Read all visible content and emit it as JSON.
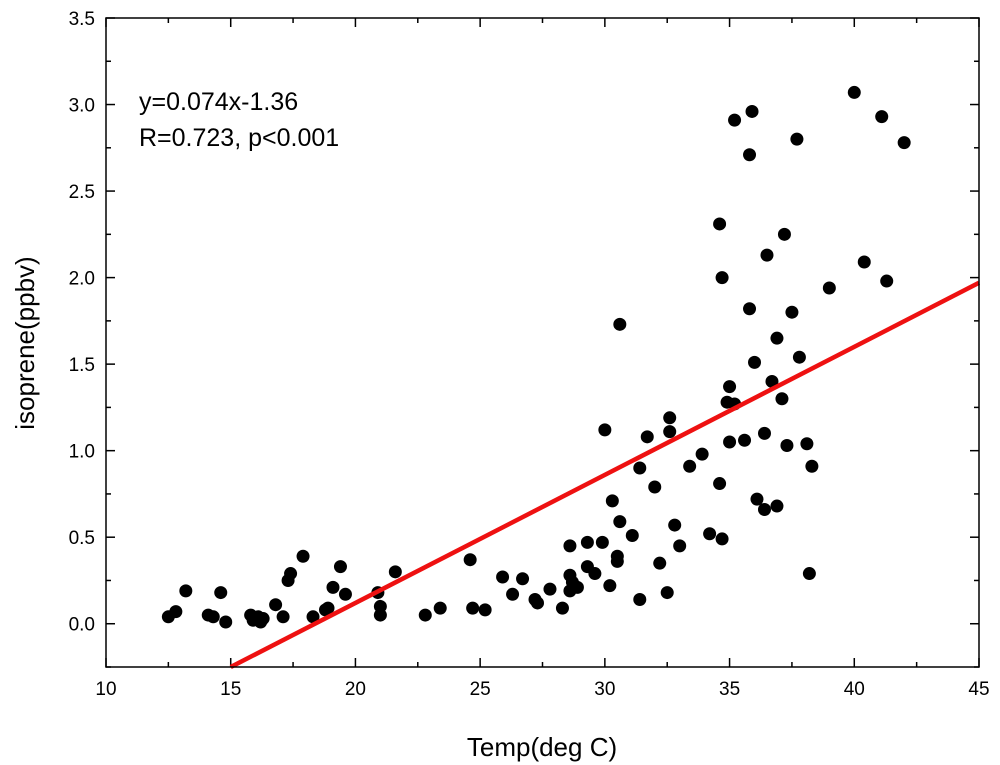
{
  "chart_data": {
    "type": "scatter",
    "title": "",
    "xlabel": "Temp(deg C)",
    "ylabel": "isoprene(ppbv)",
    "xlim": [
      10,
      45
    ],
    "ylim": [
      -0.25,
      3.5
    ],
    "xticks": [
      "10",
      "15",
      "20",
      "25",
      "30",
      "35",
      "40",
      "45"
    ],
    "yticks": [
      "0.0",
      "0.5",
      "1.0",
      "1.5",
      "2.0",
      "2.5",
      "3.0",
      "3.5"
    ],
    "grid": false,
    "legend": "none",
    "annotations": [
      "y=0.074x-1.36",
      "R=0.723, p<0.001"
    ],
    "colors": {
      "points": "#000000",
      "fit_line": "#ee1111"
    },
    "fit_line": {
      "slope": 0.074,
      "intercept": -1.36
    },
    "series": [
      {
        "name": "isoprene",
        "points": [
          [
            12.5,
            0.04
          ],
          [
            12.8,
            0.07
          ],
          [
            13.2,
            0.19
          ],
          [
            14.1,
            0.05
          ],
          [
            14.3,
            0.04
          ],
          [
            14.6,
            0.18
          ],
          [
            14.8,
            0.01
          ],
          [
            15.8,
            0.05
          ],
          [
            15.9,
            0.02
          ],
          [
            16.1,
            0.04
          ],
          [
            16.2,
            0.01
          ],
          [
            16.3,
            0.03
          ],
          [
            16.8,
            0.11
          ],
          [
            17.1,
            0.04
          ],
          [
            17.3,
            0.25
          ],
          [
            17.4,
            0.29
          ],
          [
            17.9,
            0.39
          ],
          [
            18.3,
            0.04
          ],
          [
            18.8,
            0.08
          ],
          [
            18.9,
            0.09
          ],
          [
            19.1,
            0.21
          ],
          [
            19.4,
            0.33
          ],
          [
            19.6,
            0.17
          ],
          [
            20.9,
            0.18
          ],
          [
            21.0,
            0.1
          ],
          [
            21.0,
            0.05
          ],
          [
            21.6,
            0.3
          ],
          [
            22.8,
            0.05
          ],
          [
            23.4,
            0.09
          ],
          [
            24.6,
            0.37
          ],
          [
            24.7,
            0.09
          ],
          [
            25.2,
            0.08
          ],
          [
            25.9,
            0.27
          ],
          [
            26.3,
            0.17
          ],
          [
            26.7,
            0.26
          ],
          [
            27.2,
            0.14
          ],
          [
            27.3,
            0.12
          ],
          [
            27.8,
            0.2
          ],
          [
            28.3,
            0.09
          ],
          [
            28.6,
            0.28
          ],
          [
            28.6,
            0.45
          ],
          [
            28.6,
            0.19
          ],
          [
            28.7,
            0.24
          ],
          [
            28.9,
            0.21
          ],
          [
            29.3,
            0.47
          ],
          [
            29.3,
            0.33
          ],
          [
            29.6,
            0.29
          ],
          [
            29.9,
            0.47
          ],
          [
            30.0,
            1.12
          ],
          [
            30.2,
            0.22
          ],
          [
            30.3,
            0.71
          ],
          [
            30.5,
            0.39
          ],
          [
            30.5,
            0.36
          ],
          [
            30.6,
            0.59
          ],
          [
            30.6,
            1.73
          ],
          [
            31.1,
            0.51
          ],
          [
            31.4,
            0.9
          ],
          [
            31.4,
            0.14
          ],
          [
            31.7,
            1.08
          ],
          [
            32.0,
            0.79
          ],
          [
            32.2,
            0.35
          ],
          [
            32.5,
            0.18
          ],
          [
            32.6,
            1.19
          ],
          [
            32.6,
            1.11
          ],
          [
            32.8,
            0.57
          ],
          [
            33.0,
            0.45
          ],
          [
            33.4,
            0.91
          ],
          [
            33.9,
            0.98
          ],
          [
            34.2,
            0.52
          ],
          [
            34.6,
            2.31
          ],
          [
            34.6,
            0.81
          ],
          [
            34.7,
            2.0
          ],
          [
            34.7,
            0.49
          ],
          [
            34.9,
            1.28
          ],
          [
            35.0,
            1.37
          ],
          [
            35.0,
            1.05
          ],
          [
            35.2,
            1.27
          ],
          [
            35.2,
            2.91
          ],
          [
            35.6,
            1.06
          ],
          [
            35.8,
            2.71
          ],
          [
            35.8,
            1.82
          ],
          [
            35.9,
            2.96
          ],
          [
            36.0,
            1.51
          ],
          [
            36.1,
            0.72
          ],
          [
            36.4,
            0.66
          ],
          [
            36.4,
            1.1
          ],
          [
            36.5,
            2.13
          ],
          [
            36.7,
            1.4
          ],
          [
            36.9,
            1.65
          ],
          [
            36.9,
            0.68
          ],
          [
            37.1,
            1.3
          ],
          [
            37.2,
            2.25
          ],
          [
            37.3,
            1.03
          ],
          [
            37.5,
            1.8
          ],
          [
            37.7,
            2.8
          ],
          [
            37.8,
            1.54
          ],
          [
            38.1,
            1.04
          ],
          [
            38.2,
            0.29
          ],
          [
            38.3,
            0.91
          ],
          [
            39.0,
            1.94
          ],
          [
            40.0,
            3.07
          ],
          [
            40.4,
            2.09
          ],
          [
            41.1,
            2.93
          ],
          [
            41.3,
            1.98
          ],
          [
            42.0,
            2.78
          ]
        ]
      }
    ]
  }
}
